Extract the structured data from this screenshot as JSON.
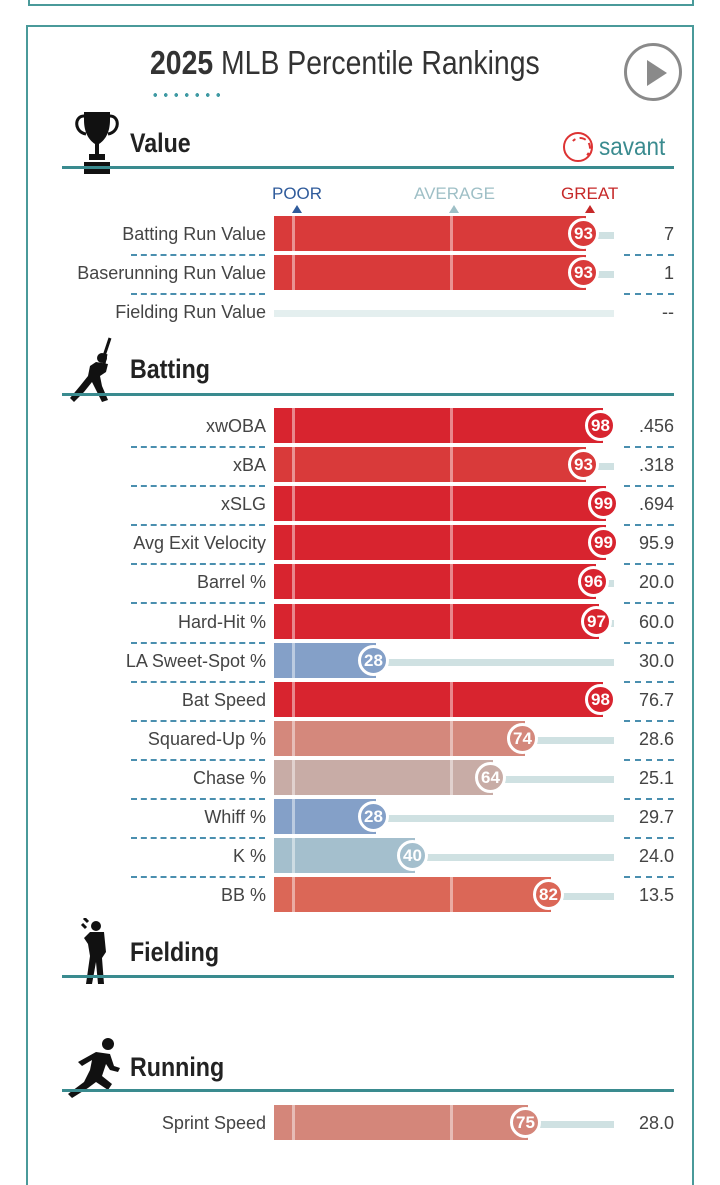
{
  "header": {
    "year": "2025",
    "title": "MLB Percentile Rankings"
  },
  "brand": {
    "name": "savant",
    "color": "#3a8b8f"
  },
  "icons": {
    "play": "play-icon",
    "trophy": "trophy-icon",
    "batter": "batter-silhouette-icon",
    "fielder": "fielder-silhouette-icon",
    "runner": "runner-silhouette-icon"
  },
  "legend": {
    "poor": "POOR",
    "average": "AVERAGE",
    "great": "GREAT"
  },
  "sections": {
    "value": {
      "title": "Value",
      "rows": [
        {
          "label": "Batting Run Value",
          "percentile": 93,
          "value": "7",
          "color": "#d93a3a"
        },
        {
          "label": "Baserunning Run Value",
          "percentile": 93,
          "value": "1",
          "color": "#d93a3a"
        },
        {
          "label": "Fielding Run Value",
          "percentile": null,
          "value": "--",
          "color": ""
        }
      ]
    },
    "batting": {
      "title": "Batting",
      "rows": [
        {
          "label": "xwOBA",
          "percentile": 98,
          "value": ".456",
          "color": "#d8242f"
        },
        {
          "label": "xBA",
          "percentile": 93,
          "value": ".318",
          "color": "#d93a3a"
        },
        {
          "label": "xSLG",
          "percentile": 99,
          "value": ".694",
          "color": "#d8242f"
        },
        {
          "label": "Avg Exit Velocity",
          "percentile": 99,
          "value": "95.9",
          "color": "#d8242f"
        },
        {
          "label": "Barrel %",
          "percentile": 96,
          "value": "20.0",
          "color": "#d8242f"
        },
        {
          "label": "Hard-Hit %",
          "percentile": 97,
          "value": "60.0",
          "color": "#d8242f"
        },
        {
          "label": "LA Sweet-Spot %",
          "percentile": 28,
          "value": "30.0",
          "color": "#84a0c8"
        },
        {
          "label": "Bat Speed",
          "percentile": 98,
          "value": "76.7",
          "color": "#d8242f"
        },
        {
          "label": "Squared-Up %",
          "percentile": 74,
          "value": "28.6",
          "color": "#d4887c"
        },
        {
          "label": "Chase %",
          "percentile": 64,
          "value": "25.1",
          "color": "#c8aca6"
        },
        {
          "label": "Whiff %",
          "percentile": 28,
          "value": "29.7",
          "color": "#84a0c8"
        },
        {
          "label": "K %",
          "percentile": 40,
          "value": "24.0",
          "color": "#a4bfcd"
        },
        {
          "label": "BB %",
          "percentile": 82,
          "value": "13.5",
          "color": "#db6757"
        }
      ]
    },
    "fielding": {
      "title": "Fielding",
      "rows": []
    },
    "running": {
      "title": "Running",
      "rows": [
        {
          "label": "Sprint Speed",
          "percentile": 75,
          "value": "28.0",
          "color": "#d4867a"
        }
      ]
    }
  }
}
